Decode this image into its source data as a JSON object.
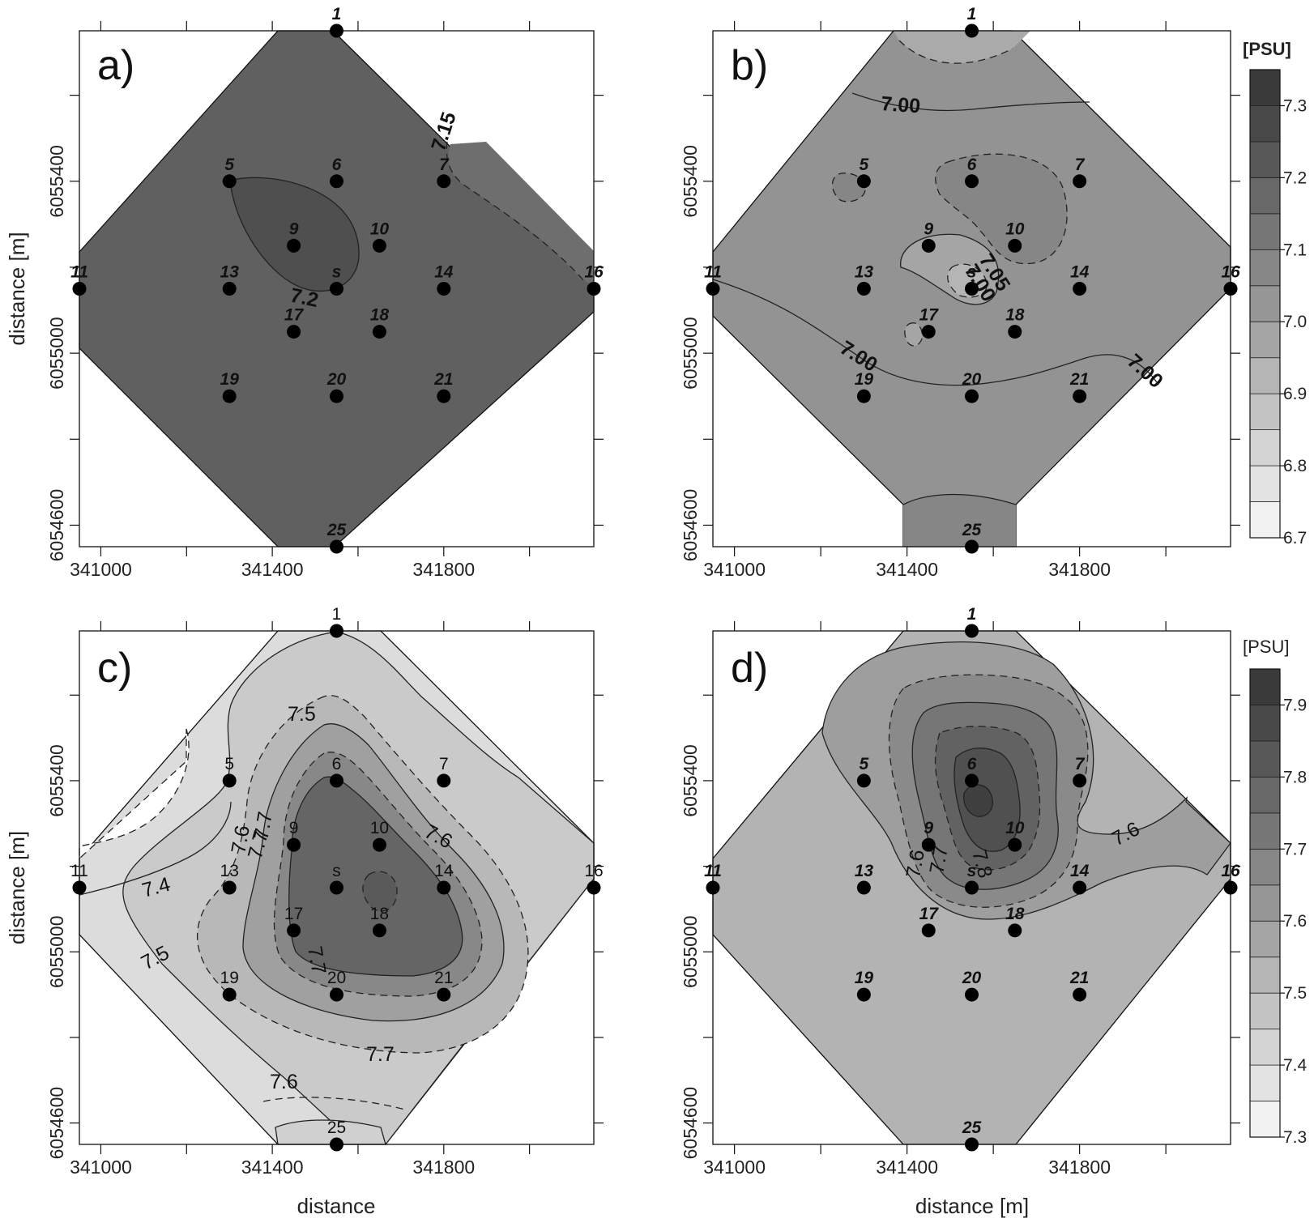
{
  "chart_data": [
    {
      "type": "contour",
      "panel_label": "a)",
      "xlabel": "",
      "ylabel": "distance [m]",
      "xlim": [
        340950,
        342150
      ],
      "ylim": [
        6054550,
        6055750
      ],
      "x_ticks": [
        "341000",
        "341400",
        "341800"
      ],
      "y_ticks": [
        "6054600",
        "6055000",
        "6055400"
      ],
      "fill_value": 7.2,
      "contour_labels": [
        "7.15",
        "7.2"
      ],
      "station_style": "bold-italic",
      "stations": [
        {
          "label": "1",
          "x": 341550,
          "y": 6055750
        },
        {
          "label": "5",
          "x": 341300,
          "y": 6055400
        },
        {
          "label": "6",
          "x": 341550,
          "y": 6055400
        },
        {
          "label": "7",
          "x": 341800,
          "y": 6055400
        },
        {
          "label": "9",
          "x": 341450,
          "y": 6055250
        },
        {
          "label": "10",
          "x": 341650,
          "y": 6055250
        },
        {
          "label": "11",
          "x": 340950,
          "y": 6055150
        },
        {
          "label": "13",
          "x": 341300,
          "y": 6055150
        },
        {
          "label": "s",
          "x": 341550,
          "y": 6055150
        },
        {
          "label": "14",
          "x": 341800,
          "y": 6055150
        },
        {
          "label": "16",
          "x": 342150,
          "y": 6055150
        },
        {
          "label": "17",
          "x": 341450,
          "y": 6055050
        },
        {
          "label": "18",
          "x": 341650,
          "y": 6055050
        },
        {
          "label": "19",
          "x": 341300,
          "y": 6054900
        },
        {
          "label": "20",
          "x": 341550,
          "y": 6054900
        },
        {
          "label": "21",
          "x": 341800,
          "y": 6054900
        },
        {
          "label": "25",
          "x": 341550,
          "y": 6054550
        }
      ]
    },
    {
      "type": "contour",
      "panel_label": "b)",
      "xlabel": "",
      "ylabel": "",
      "xlim": [
        340950,
        342150
      ],
      "ylim": [
        6054550,
        6055750
      ],
      "x_ticks": [
        "341000",
        "341400",
        "341800"
      ],
      "y_ticks": [
        "6054600",
        "6055000",
        "6055400"
      ],
      "fill_value": 7.0,
      "contour_labels": [
        "7.00",
        "7.05",
        "7.00",
        "7.00",
        "7.00"
      ],
      "station_style": "bold-italic",
      "stations": "same as panel a",
      "colorbar": {
        "unit": "[PSU]",
        "ticks": [
          "7.3",
          "7.2",
          "7.1",
          "7.0",
          "6.9",
          "6.8",
          "6.7"
        ],
        "range": [
          6.7,
          7.35
        ]
      }
    },
    {
      "type": "contour",
      "panel_label": "c)",
      "xlabel": "distance",
      "ylabel": "distance [m]",
      "xlim": [
        340950,
        342150
      ],
      "ylim": [
        6054550,
        6055750
      ],
      "x_ticks": [
        "341000",
        "341400",
        "341800"
      ],
      "y_ticks": [
        "6054600",
        "6055000",
        "6055400"
      ],
      "contour_labels": [
        "7.5",
        "7.6",
        "7.7",
        "7.4",
        "7.5",
        "7.6",
        "7.7",
        "7.7",
        "7.6",
        "7.7"
      ],
      "station_style": "regular",
      "stations": "same as panel a"
    },
    {
      "type": "contour",
      "panel_label": "d)",
      "xlabel": "distance [m]",
      "ylabel": "",
      "xlim": [
        340950,
        342150
      ],
      "ylim": [
        6054550,
        6055750
      ],
      "x_ticks": [
        "341000",
        "341400",
        "341800"
      ],
      "y_ticks": [
        "6054600",
        "6055000",
        "6055400"
      ],
      "contour_labels": [
        "7.6",
        "7.7",
        "7.8",
        "7.6"
      ],
      "station_style": "bold-italic",
      "stations": "same as panel a",
      "colorbar": {
        "unit": "[PSU]",
        "ticks": [
          "7.9",
          "7.8",
          "7.7",
          "7.6",
          "7.5",
          "7.4",
          "7.3"
        ],
        "range": [
          7.3,
          7.95
        ]
      }
    }
  ],
  "colors": {
    "frame": "#111111",
    "dot": "#000000"
  }
}
